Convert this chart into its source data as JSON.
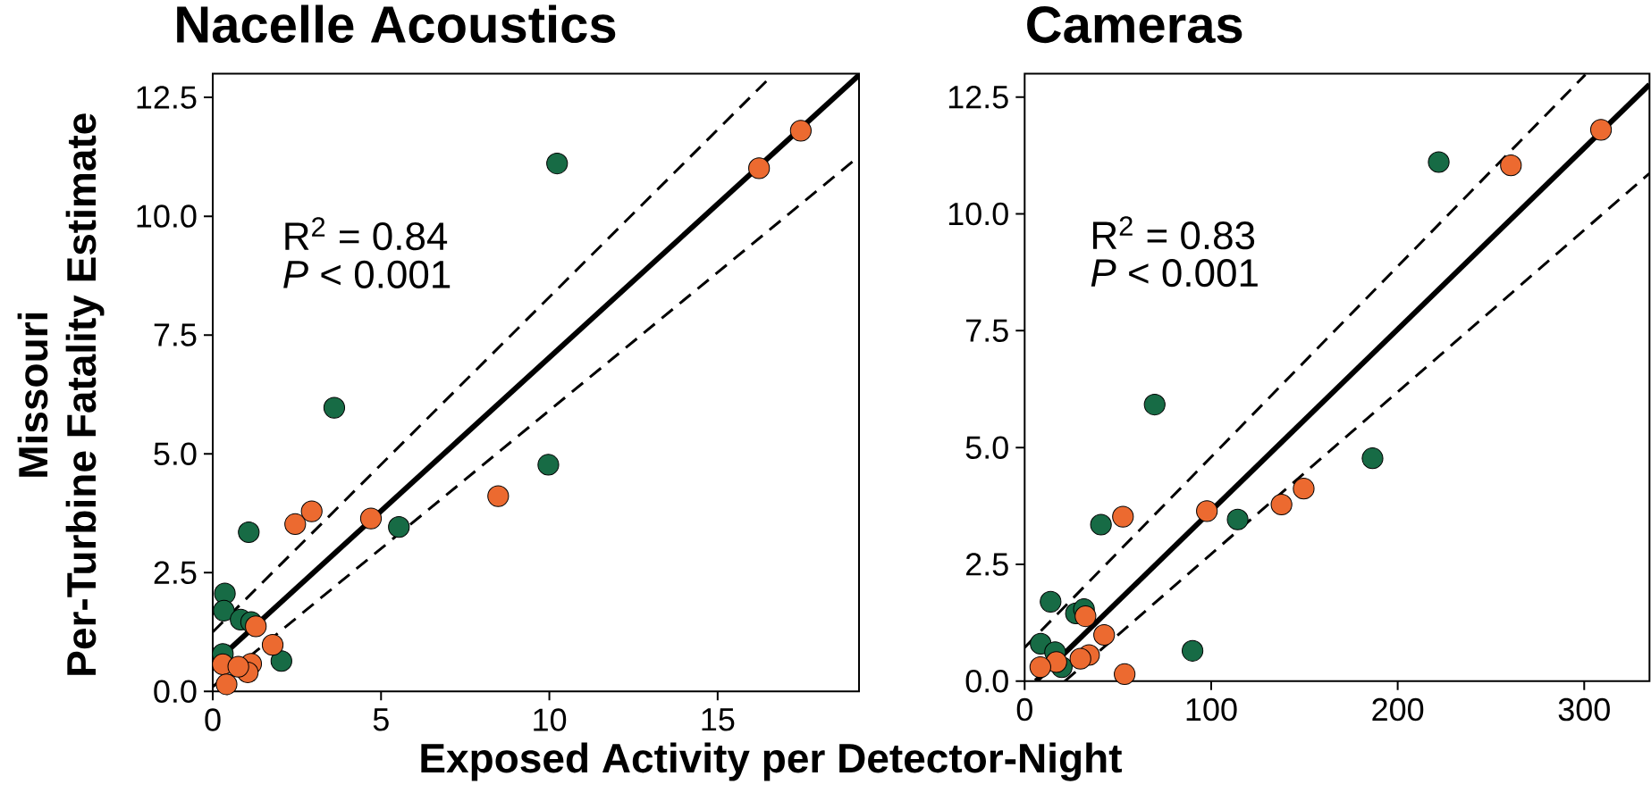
{
  "chart_data": [
    {
      "type": "scatter",
      "title": "Nacelle Acoustics",
      "xlabel": "Exposed Activity per Detector-Night",
      "ylabel": "Missouri Per-Turbine Fatality Estimate",
      "marker": "circle",
      "xlim": [
        0,
        19.2
      ],
      "ylim": [
        0,
        13
      ],
      "xticks": [
        0,
        5,
        10,
        15
      ],
      "yticks": [
        {
          "value": 0,
          "label": "0.0"
        },
        2.5,
        {
          "value": 5,
          "label": "5.0"
        },
        7.5,
        {
          "value": 10,
          "label": "10.0"
        },
        12.5
      ],
      "annotations": [
        "R$^{2}$ = 0.84",
        "*P* < 0.001"
      ],
      "series": [
        {
          "color": "#176b45",
          "x": [
            3.61,
            9.97,
            5.53,
            1.07,
            0.36,
            0.33,
            0.83,
            1.14,
            2.04,
            0.3,
            0.41,
            10.23
          ],
          "values": [
            5.97,
            4.77,
            3.46,
            3.35,
            2.06,
            1.7,
            1.51,
            1.46,
            0.64,
            0.79,
            null,
            11.11
          ]
        },
        {
          "color": "#ec6a30",
          "x": [
            8.48,
            4.7,
            2.94,
            2.45,
            1.28,
            1.78,
            1.14,
            1.04,
            0.3,
            0.41,
            0.76,
            16.23,
            17.47
          ],
          "values": [
            4.11,
            3.64,
            3.79,
            3.52,
            1.37,
            0.98,
            0.58,
            0.4,
            0.57,
            0.15,
            0.52,
            11.01,
            11.8
          ]
        },
        {
          "type": "line",
          "marker": "none",
          "color": "#000000",
          "line_style": "solid",
          "x": [
            0.3,
            19.2
          ],
          "values": [
            0.76,
            12.97
          ]
        },
        {
          "type": "line",
          "marker": "none",
          "color": "#000000",
          "line_style": "dashed",
          "x": [
            0,
            16.6
          ],
          "values": [
            1.25,
            12.95
          ]
        },
        {
          "type": "line",
          "marker": "none",
          "color": "#000000",
          "line_style": "dashed",
          "x": [
            0,
            19.2
          ],
          "values": [
            0.1,
            11.26
          ]
        }
      ]
    },
    {
      "type": "scatter",
      "title": "Cameras",
      "marker": "circle",
      "xlim": [
        0,
        335
      ],
      "ylim": [
        0,
        13
      ],
      "xticks": [
        0,
        100,
        200,
        300
      ],
      "yticks": [
        {
          "value": 0,
          "label": "0.0"
        },
        2.5,
        {
          "value": 5,
          "label": "5.0"
        },
        7.5,
        {
          "value": 10,
          "label": "10.0"
        },
        12.5
      ],
      "annotations": [
        "R$^{2}$ = 0.83",
        "*P* < 0.001"
      ],
      "series": [
        {
          "color": "#176b45",
          "x": [
            69.7,
            186.5,
            114.2,
            40.9,
            13.9,
            27.5,
            31.8,
            8.6,
            16.3,
            90,
            19.9,
            29.4,
            222
          ],
          "values": [
            5.92,
            4.77,
            3.46,
            3.35,
            1.7,
            1.45,
            1.54,
            0.8,
            0.62,
            0.65,
            0.3,
            null,
            11.11
          ]
        },
        {
          "color": "#ec6a30",
          "x": [
            52.7,
            97.7,
            137.7,
            149.6,
            32.6,
            42.6,
            34.5,
            29.9,
            17,
            8.4,
            53.6,
            260.7,
            309
          ],
          "values": [
            3.52,
            3.64,
            3.78,
            4.12,
            1.39,
            0.99,
            0.56,
            0.48,
            0.41,
            0.3,
            0.15,
            11.04,
            11.8
          ]
        },
        {
          "type": "line",
          "marker": "none",
          "color": "#000000",
          "line_style": "solid",
          "x": [
            6,
            335
          ],
          "values": [
            0,
            12.77
          ]
        },
        {
          "type": "line",
          "marker": "none",
          "color": "#000000",
          "line_style": "dashed",
          "x": [
            0,
            300.6
          ],
          "values": [
            0.72,
            12.98
          ]
        },
        {
          "type": "line",
          "marker": "none",
          "color": "#000000",
          "line_style": "dashed",
          "x": [
            21.5,
            335
          ],
          "values": [
            0,
            10.87
          ]
        }
      ]
    }
  ]
}
